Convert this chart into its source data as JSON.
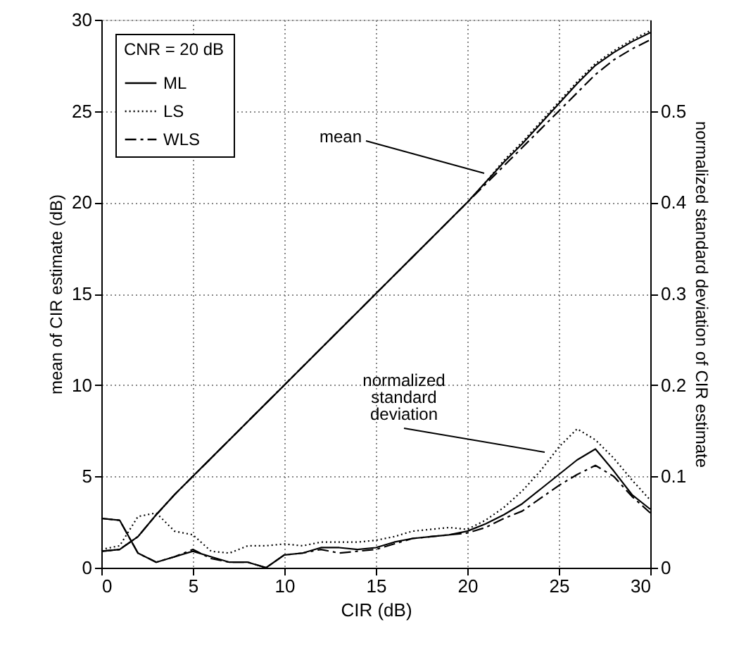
{
  "chart_data": {
    "type": "line",
    "xlabel": "CIR (dB)",
    "ylabel": "mean of CIR estimate (dB)",
    "y2label": "normalized standard deviation of CIR estimate",
    "legend_title": "CNR = 20 dB",
    "legend": "top left",
    "grid": true,
    "marker": "none",
    "x": [
      0,
      1,
      2,
      3,
      4,
      5,
      6,
      7,
      8,
      9,
      10,
      11,
      12,
      13,
      14,
      15,
      16,
      17,
      18,
      19,
      20,
      21,
      22,
      23,
      24,
      25,
      26,
      27,
      28,
      29,
      30
    ],
    "xlim": [
      0,
      30
    ],
    "xticks": [
      0,
      5,
      10,
      15,
      20,
      25,
      30
    ],
    "ylim": [
      0,
      30
    ],
    "yticks": [
      0,
      5,
      10,
      15,
      20,
      25,
      30
    ],
    "y2lim": [
      0,
      0.6
    ],
    "y2ticks": [
      0,
      0.1,
      0.2,
      0.3,
      0.4,
      0.5
    ],
    "series": [
      {
        "name": "ML",
        "color": "#000000",
        "line_style": "solid",
        "values": [
          0.9,
          1.0,
          1.7,
          2.9,
          4,
          5,
          6,
          7,
          8,
          9,
          10,
          11,
          12,
          13,
          14,
          15,
          16,
          17,
          18,
          19,
          20,
          21.1,
          22.2,
          23.2,
          24.3,
          25.4,
          26.5,
          27.5,
          28.2,
          28.8,
          29.3
        ]
      },
      {
        "name": "LS",
        "color": "#000000",
        "line_style": "dotted",
        "values": [
          0.9,
          1.0,
          1.7,
          2.9,
          4,
          5,
          6,
          7,
          8,
          9,
          10,
          11,
          12,
          13,
          14,
          15,
          16,
          17,
          18,
          19,
          20,
          21.1,
          22.3,
          23.3,
          24.4,
          25.5,
          26.6,
          27.6,
          28.3,
          28.9,
          29.4
        ]
      },
      {
        "name": "WLS",
        "color": "#000000",
        "line_style": "dashed",
        "values": [
          0.9,
          1.0,
          1.7,
          2.9,
          4,
          5,
          6,
          7,
          8,
          9,
          10,
          11,
          12,
          13,
          14,
          15,
          16,
          17,
          18,
          19,
          20,
          21.0,
          22.0,
          23.0,
          24.0,
          25.0,
          26.0,
          27.0,
          27.8,
          28.4,
          28.9
        ]
      },
      {
        "color": "#000000",
        "line_style": "solid",
        "axis": "y2",
        "values": [
          0.054,
          0.052,
          0.016,
          0.006,
          0.012,
          0.018,
          0.012,
          0.006,
          0.006,
          0.0,
          0.014,
          0.016,
          0.022,
          0.022,
          0.02,
          0.022,
          0.028,
          0.032,
          0.034,
          0.036,
          0.04,
          0.048,
          0.058,
          0.07,
          0.086,
          0.102,
          0.118,
          0.13,
          0.106,
          0.08,
          0.064
        ]
      },
      {
        "color": "#000000",
        "line_style": "dotted",
        "axis": "y2",
        "values": [
          0.02,
          0.024,
          0.056,
          0.06,
          0.04,
          0.036,
          0.018,
          0.016,
          0.024,
          0.024,
          0.026,
          0.024,
          0.028,
          0.028,
          0.028,
          0.03,
          0.034,
          0.04,
          0.042,
          0.044,
          0.042,
          0.052,
          0.066,
          0.084,
          0.106,
          0.132,
          0.152,
          0.14,
          0.12,
          0.096,
          0.074
        ]
      },
      {
        "color": "#000000",
        "line_style": "dashed",
        "axis": "y2",
        "values": [
          0.054,
          0.052,
          0.016,
          0.006,
          0.012,
          0.02,
          0.01,
          0.006,
          0.006,
          0.0,
          0.014,
          0.016,
          0.02,
          0.016,
          0.018,
          0.02,
          0.026,
          0.032,
          0.034,
          0.036,
          0.038,
          0.044,
          0.054,
          0.062,
          0.076,
          0.09,
          0.102,
          0.112,
          0.1,
          0.078,
          0.06
        ]
      }
    ],
    "annotations": [
      "mean",
      "normalized standard deviation"
    ]
  }
}
